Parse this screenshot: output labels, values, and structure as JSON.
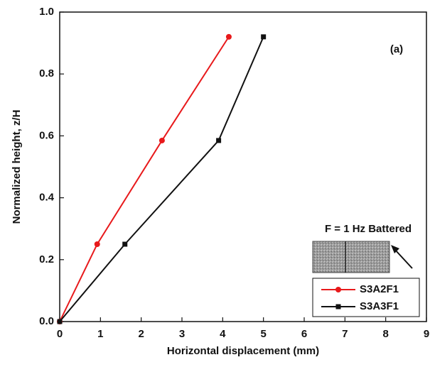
{
  "chart_data": {
    "type": "line",
    "xlabel": "Horizontal displacement (mm)",
    "ylabel": "Normalized height, z/H",
    "xlim": [
      0,
      9
    ],
    "xticks": [
      0,
      1,
      2,
      3,
      4,
      5,
      6,
      7,
      8,
      9
    ],
    "ylim": [
      0,
      1
    ],
    "yticks": [
      {
        "value": 0,
        "label": "0.0"
      },
      0.2,
      0.4,
      0.6,
      0.8,
      {
        "value": 1,
        "label": "1.0"
      }
    ],
    "annotations": [
      "(a)",
      "F = 1 Hz Battered"
    ],
    "legend": "lower right",
    "series": [
      {
        "name": "S3A2F1",
        "color": "#e8191b",
        "marker": "circle",
        "x": [
          0,
          0.92,
          2.51,
          4.15
        ],
        "values": [
          0,
          0.25,
          0.585,
          0.92
        ]
      },
      {
        "name": "S3A3F1",
        "color": "#111111",
        "marker": "square",
        "x": [
          0,
          1.6,
          3.9,
          5.0
        ],
        "values": [
          0,
          0.25,
          0.585,
          0.92
        ]
      }
    ]
  }
}
